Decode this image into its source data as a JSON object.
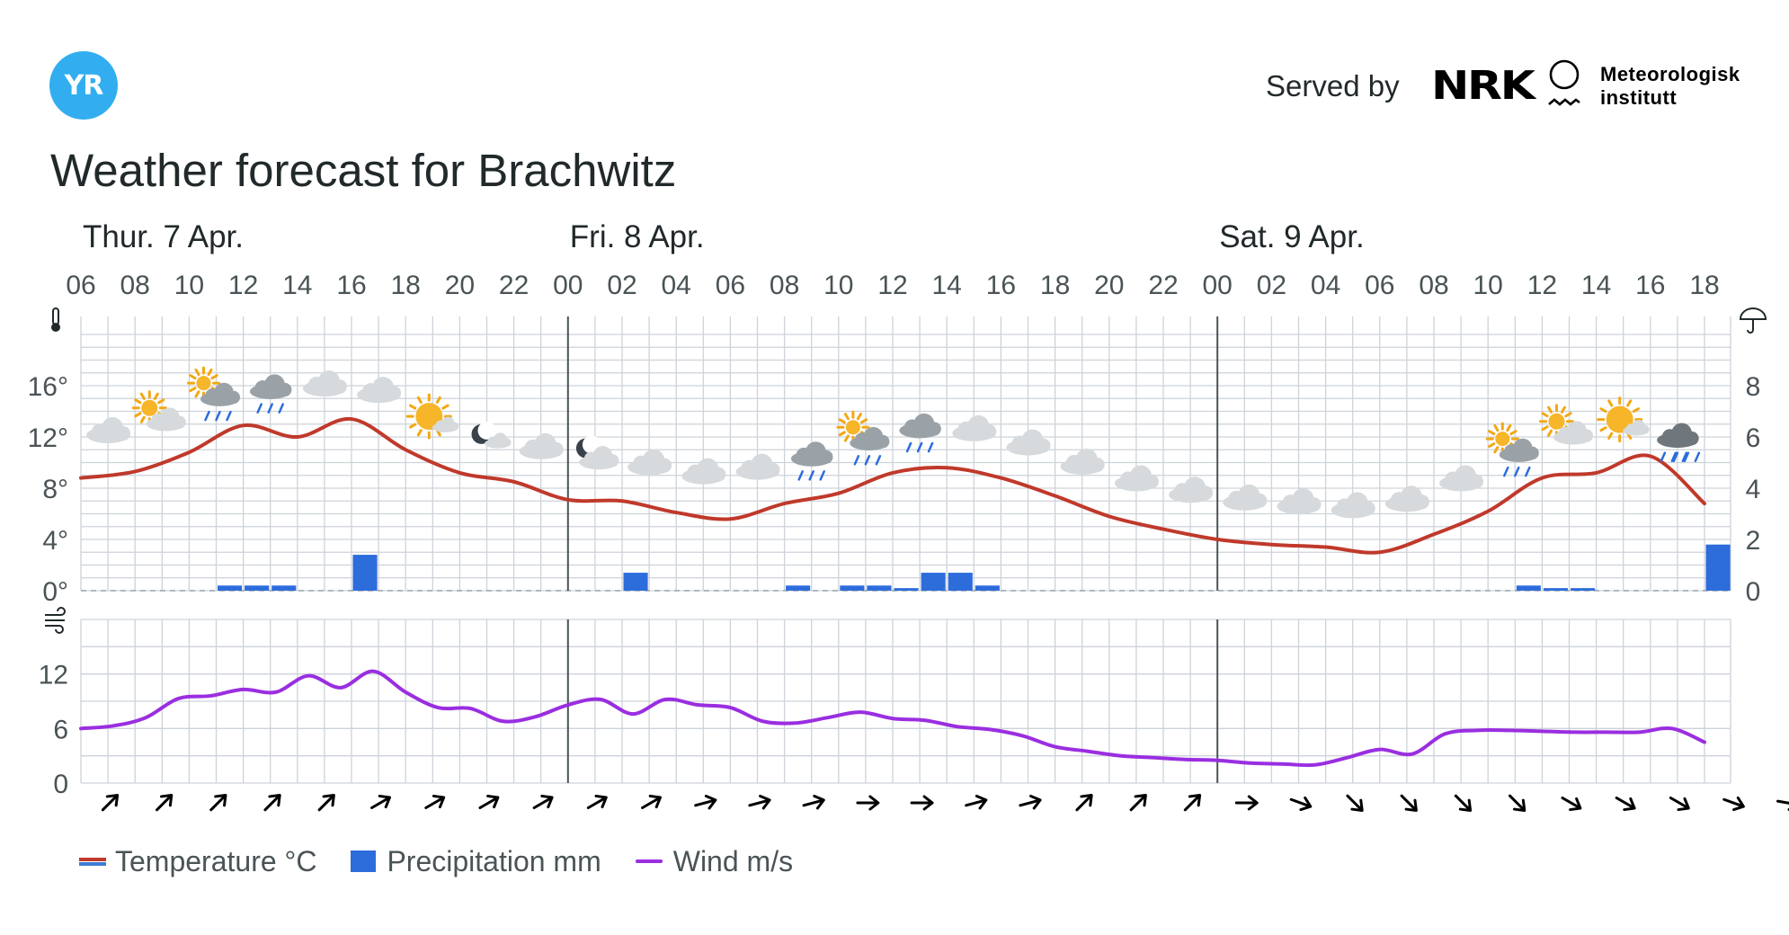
{
  "header": {
    "logo_text": "YR",
    "title": "Weather forecast for Brachwitz",
    "served_by": "Served by",
    "nrk_logo": "NRK",
    "met_logo_lines": [
      "Meteorologisk",
      "institutt"
    ]
  },
  "colors": {
    "temperature": "#c0392b",
    "precipitation": "#2d6cdb",
    "wind": "#9a2ee0",
    "grid": "#cdd3da",
    "day_divider": "#4a5356",
    "brand": "#32aef0"
  },
  "chart_data": [
    {
      "type": "line",
      "name": "temperature",
      "days": [
        {
          "label": "Thur. 7 Apr.",
          "start_hour": 0
        },
        {
          "label": "Fri. 8 Apr.",
          "start_hour": 18
        },
        {
          "label": "Sat. 9 Apr.",
          "start_hour": 42
        }
      ],
      "time_labels": [
        "06",
        "08",
        "10",
        "12",
        "14",
        "16",
        "18",
        "20",
        "22",
        "00",
        "02",
        "04",
        "06",
        "08",
        "10",
        "12",
        "14",
        "16",
        "18",
        "20",
        "22",
        "00",
        "02",
        "04",
        "06",
        "08",
        "10",
        "12",
        "14",
        "16",
        "18"
      ],
      "hours": [
        0,
        2,
        4,
        6,
        8,
        10,
        12,
        14,
        16,
        18,
        20,
        22,
        24,
        26,
        28,
        30,
        32,
        34,
        36,
        38,
        40,
        42,
        44,
        46,
        48,
        50,
        52,
        54,
        56,
        58,
        60
      ],
      "temperature_c": [
        8.8,
        9.3,
        10.8,
        12.9,
        12.0,
        13.4,
        11.0,
        9.2,
        8.5,
        7.1,
        7.0,
        6.1,
        5.6,
        6.8,
        7.6,
        9.2,
        9.6,
        8.8,
        7.4,
        5.8,
        4.8,
        4.0,
        3.6,
        3.4,
        3.0,
        4.4,
        6.2,
        8.8,
        9.2,
        10.5,
        6.8
      ],
      "y_ticks": [
        "0°",
        "4°",
        "8°",
        "12°",
        "16°"
      ],
      "ylim": [
        0,
        20
      ],
      "right_ticks": [
        "0",
        "2",
        "4",
        "6",
        "8"
      ],
      "right_ylim": [
        0,
        10
      ],
      "symbols": [
        "cloudy",
        "partly-cloudy-day",
        "rain-showers-day",
        "rain",
        "cloudy",
        "cloudy",
        "fair-day",
        "clear-night",
        "cloudy",
        "partly-cloudy-night",
        "cloudy",
        "cloudy",
        "cloudy",
        "rain",
        "rain-showers-day",
        "rain",
        "cloudy",
        "cloudy",
        "cloudy",
        "cloudy",
        "cloudy",
        "cloudy",
        "cloudy",
        "cloudy",
        "cloudy",
        "cloudy",
        "rain-showers-day",
        "partly-cloudy-day",
        "fair-day",
        "heavy-rain"
      ]
    },
    {
      "type": "bar",
      "name": "precipitation",
      "unit": "mm",
      "precipitation_mm": [
        0,
        0,
        0,
        0,
        0,
        0.2,
        0.2,
        0.2,
        0,
        0,
        1.4,
        0,
        0,
        0,
        0,
        0,
        0,
        0,
        0,
        0,
        0.7,
        0,
        0,
        0,
        0,
        0,
        0.2,
        0,
        0.2,
        0.2,
        0.1,
        0.7,
        0.7,
        0.2,
        0,
        0,
        0,
        0,
        0,
        0,
        0,
        0,
        0,
        0,
        0,
        0,
        0,
        0,
        0,
        0,
        0,
        0,
        0,
        0.2,
        0.1,
        0.1,
        0,
        0,
        0,
        0,
        1.8,
        0
      ],
      "ylim": [
        0,
        10
      ]
    },
    {
      "type": "line",
      "name": "wind",
      "unit": "m/s",
      "wind_ms": [
        6,
        6.3,
        7.2,
        9.3,
        9.6,
        10.3,
        10,
        11.8,
        10.5,
        12.3,
        10,
        8.3,
        8.2,
        6.8,
        7.3,
        8.6,
        9.2,
        7.6,
        9.2,
        8.6,
        8.3,
        6.8,
        6.6,
        7.2,
        7.8,
        7.1,
        6.9,
        6.2,
        5.9,
        5.2,
        4,
        3.5,
        3,
        2.8,
        2.6,
        2.5,
        2.2,
        2.1,
        2,
        2.8,
        3.7,
        3.2,
        5.4,
        5.8,
        5.8,
        5.7,
        5.6,
        5.6,
        5.6,
        6,
        4.5
      ],
      "y_ticks": [
        "0",
        "6",
        "12"
      ],
      "ylim": [
        0,
        18
      ],
      "direction_deg": [
        45,
        45,
        45,
        45,
        45,
        60,
        60,
        60,
        60,
        60,
        60,
        75,
        75,
        75,
        90,
        90,
        75,
        75,
        45,
        45,
        45,
        90,
        110,
        135,
        135,
        135,
        135,
        120,
        120,
        120,
        110,
        100
      ]
    }
  ],
  "legend": {
    "temperature": "Temperature °C",
    "precipitation": "Precipitation mm",
    "wind": "Wind m/s"
  }
}
